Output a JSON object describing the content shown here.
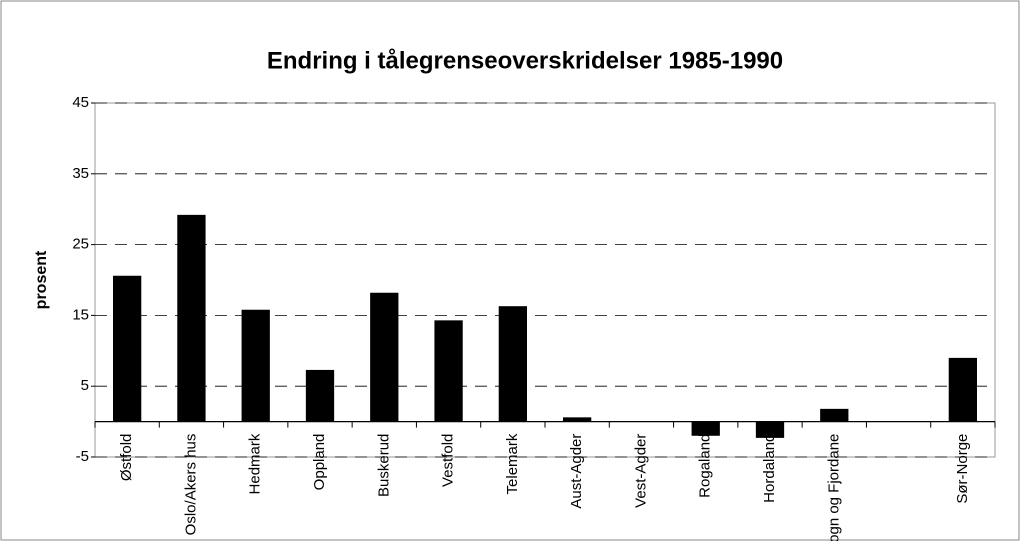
{
  "chart_data": {
    "type": "bar",
    "title": "Endring i tålegrenseoverskridelser  1985-1990",
    "y_label": "prosent",
    "categories": [
      "Østfold",
      "Oslo/Akers hus",
      "Hedmark",
      "Oppland",
      "Buskerud",
      "Vestfold",
      "Telemark",
      "Aust-Agder",
      "Vest-Agder",
      "Rogaland",
      "Hordaland",
      "Sogn og Fjordane",
      null,
      "Sør-Norge"
    ],
    "values": [
      20.6,
      29.2,
      15.8,
      7.3,
      18.2,
      14.3,
      16.3,
      0.6,
      0,
      -2.0,
      -2.3,
      1.8,
      null,
      9.0
    ],
    "color": "#000000",
    "ylim": [
      -5,
      45
    ],
    "yticks": [
      -5,
      5,
      15,
      25,
      35,
      45
    ],
    "grid": true
  }
}
